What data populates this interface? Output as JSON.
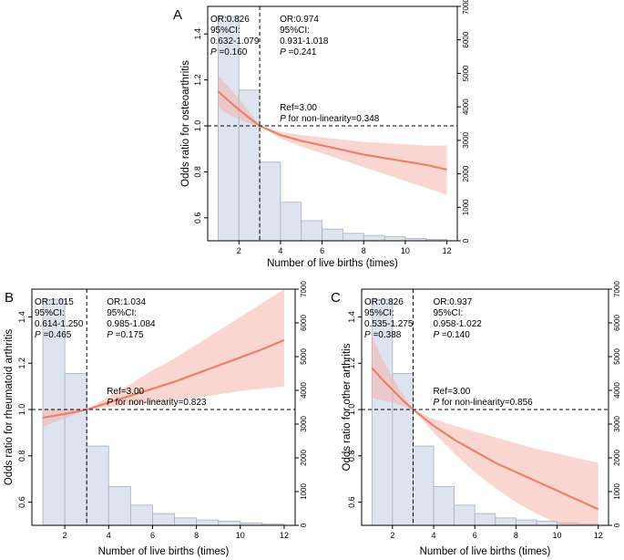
{
  "chart_data": [
    {
      "id": "A",
      "type": "line",
      "panel_label": "A",
      "title": "",
      "xlabel": "Number of live births (times)",
      "ylabel": "Odds ratio for osteoarthritis",
      "x_ticks": [
        2,
        4,
        6,
        8,
        10,
        12
      ],
      "y_ticks": [
        0.6,
        0.8,
        1.0,
        1.2,
        1.4
      ],
      "y_tick_labels": [
        "0.6",
        "0.8",
        "1.0",
        "1.2",
        "1.4"
      ],
      "y2_ticks": [
        0,
        1000,
        2000,
        3000,
        4000,
        5000,
        6000,
        7000
      ],
      "y2_tick_labels": [
        "0",
        "1000",
        "2000",
        "3000",
        "4000",
        "5000",
        "6000",
        "7000"
      ],
      "xlim": [
        0.5,
        12.5
      ],
      "ylim": [
        0.5,
        1.52
      ],
      "y2lim": [
        0,
        7000
      ],
      "reference_x": 3,
      "reference_y": 1.0,
      "histogram": {
        "bins": [
          [
            1,
            2
          ],
          [
            2,
            3
          ],
          [
            3,
            4
          ],
          [
            4,
            5
          ],
          [
            5,
            6
          ],
          [
            6,
            7
          ],
          [
            7,
            8
          ],
          [
            8,
            9
          ],
          [
            9,
            10
          ],
          [
            10,
            11
          ],
          [
            11,
            12
          ]
        ],
        "counts": [
          6700,
          4500,
          2350,
          1150,
          600,
          350,
          220,
          160,
          120,
          70,
          40
        ]
      },
      "series": [
        {
          "name": "Odds ratio",
          "x": [
            1,
            1.5,
            2,
            2.5,
            3,
            4,
            5,
            6,
            7,
            8,
            9,
            10,
            11,
            12
          ],
          "y": [
            1.15,
            1.11,
            1.07,
            1.035,
            1.0,
            0.96,
            0.935,
            0.915,
            0.895,
            0.875,
            0.86,
            0.845,
            0.83,
            0.81
          ],
          "lower": [
            1.08,
            1.05,
            1.03,
            1.01,
            1.0,
            0.945,
            0.91,
            0.88,
            0.85,
            0.82,
            0.79,
            0.76,
            0.73,
            0.7
          ],
          "upper": [
            1.22,
            1.17,
            1.12,
            1.06,
            1.0,
            0.975,
            0.96,
            0.95,
            0.94,
            0.93,
            0.925,
            0.92,
            0.915,
            0.915
          ]
        }
      ],
      "annotations": {
        "left_or": "OR:0.826",
        "left_ci_label": "95%CI:",
        "left_ci": "0.632-1.079",
        "left_p_italic": "P",
        "left_p_value": " =0.160",
        "right_or": "OR:0.974",
        "right_ci_label": "95%CI:",
        "right_ci": "0.931-1.018",
        "right_p_italic": "P",
        "right_p_value": " =0.241",
        "ref": "Ref=3.00",
        "nonlin_italic": "P",
        "nonlin_rest": " for non-linearity=0.348"
      }
    },
    {
      "id": "B",
      "type": "line",
      "panel_label": "B",
      "title": "",
      "xlabel": "Number of live births (times)",
      "ylabel": "Odds ratio for rheumatoid arthritis",
      "x_ticks": [
        2,
        4,
        6,
        8,
        10,
        12
      ],
      "y_ticks": [
        0.6,
        0.8,
        1.0,
        1.2,
        1.4
      ],
      "y_tick_labels": [
        "0.6",
        "0.8",
        "1.0",
        "1.2",
        "1.4"
      ],
      "y2_ticks": [
        0,
        1000,
        2000,
        3000,
        4000,
        5000,
        6000,
        7000
      ],
      "y2_tick_labels": [
        "0",
        "1000",
        "2000",
        "3000",
        "4000",
        "5000",
        "6000",
        "7000"
      ],
      "xlim": [
        0.5,
        12.5
      ],
      "ylim": [
        0.5,
        1.52
      ],
      "y2lim": [
        0,
        7000
      ],
      "reference_x": 3,
      "reference_y": 1.0,
      "histogram": {
        "bins": [
          [
            1,
            2
          ],
          [
            2,
            3
          ],
          [
            3,
            4
          ],
          [
            4,
            5
          ],
          [
            5,
            6
          ],
          [
            6,
            7
          ],
          [
            7,
            8
          ],
          [
            8,
            9
          ],
          [
            9,
            10
          ],
          [
            10,
            11
          ],
          [
            11,
            12
          ]
        ],
        "counts": [
          6700,
          4500,
          2350,
          1150,
          600,
          350,
          220,
          160,
          120,
          70,
          40
        ]
      },
      "series": [
        {
          "name": "Odds ratio",
          "x": [
            1,
            1.5,
            2,
            2.5,
            3,
            4,
            5,
            6,
            7,
            8,
            9,
            10,
            11,
            12
          ],
          "y": [
            0.965,
            0.973,
            0.981,
            0.99,
            1.0,
            1.03,
            1.06,
            1.09,
            1.12,
            1.155,
            1.19,
            1.225,
            1.26,
            1.3
          ],
          "lower": [
            0.925,
            0.945,
            0.96,
            0.98,
            1.0,
            1.01,
            1.02,
            1.03,
            1.04,
            1.05,
            1.065,
            1.08,
            1.09,
            1.1
          ],
          "upper": [
            1.005,
            1.0,
            1.0,
            1.0,
            1.0,
            1.055,
            1.11,
            1.17,
            1.22,
            1.28,
            1.34,
            1.4,
            1.46,
            1.52
          ]
        }
      ],
      "annotations": {
        "left_or": "OR:1.015",
        "left_ci_label": "95%CI:",
        "left_ci": "0.614-1.250",
        "left_p_italic": "P",
        "left_p_value": " =0.465",
        "right_or": "OR:1.034",
        "right_ci_label": "95%CI:",
        "right_ci": "0.985-1.084",
        "right_p_italic": "P",
        "right_p_value": " =0.175",
        "ref": "Ref=3.00",
        "nonlin_italic": "P",
        "nonlin_rest": " for non-linearity=0.823"
      }
    },
    {
      "id": "C",
      "type": "line",
      "panel_label": "C",
      "title": "",
      "xlabel": "Number of live births (times)",
      "ylabel": "Odds ratio for other arthritis",
      "x_ticks": [
        2,
        4,
        6,
        8,
        10,
        12
      ],
      "y_ticks": [
        0.6,
        0.8,
        1.0,
        1.2,
        1.4
      ],
      "y_tick_labels": [
        "0.6",
        "0.8",
        "1.0",
        "1.2",
        "1.4"
      ],
      "y2_ticks": [
        0,
        1000,
        2000,
        3000,
        4000,
        5000,
        6000,
        7000
      ],
      "y2_tick_labels": [
        "0",
        "1000",
        "2000",
        "3000",
        "4000",
        "5000",
        "6000",
        "7000"
      ],
      "xlim": [
        0.5,
        12.5
      ],
      "ylim": [
        0.5,
        1.52
      ],
      "y2lim": [
        0,
        7000
      ],
      "reference_x": 3,
      "reference_y": 1.0,
      "histogram": {
        "bins": [
          [
            1,
            2
          ],
          [
            2,
            3
          ],
          [
            3,
            4
          ],
          [
            4,
            5
          ],
          [
            5,
            6
          ],
          [
            6,
            7
          ],
          [
            7,
            8
          ],
          [
            8,
            9
          ],
          [
            9,
            10
          ],
          [
            10,
            11
          ],
          [
            11,
            12
          ]
        ],
        "counts": [
          6700,
          4500,
          2350,
          1150,
          600,
          350,
          220,
          160,
          120,
          70,
          40
        ]
      },
      "series": [
        {
          "name": "Odds ratio",
          "x": [
            1,
            1.5,
            2,
            2.5,
            3,
            4,
            5,
            6,
            7,
            8,
            9,
            10,
            11,
            12
          ],
          "y": [
            1.18,
            1.13,
            1.085,
            1.04,
            1.0,
            0.93,
            0.87,
            0.82,
            0.77,
            0.73,
            0.69,
            0.65,
            0.61,
            0.57
          ],
          "lower": [
            1.05,
            1.04,
            1.03,
            1.015,
            1.0,
            0.9,
            0.81,
            0.73,
            0.66,
            0.6,
            0.55,
            0.51,
            0.47,
            0.44
          ],
          "upper": [
            1.32,
            1.22,
            1.14,
            1.065,
            1.0,
            0.96,
            0.93,
            0.905,
            0.88,
            0.855,
            0.83,
            0.81,
            0.79,
            0.77
          ]
        }
      ],
      "annotations": {
        "left_or": "OR:0.826",
        "left_ci_label": "95%CI:",
        "left_ci": "0.535-1.275",
        "left_p_italic": "P",
        "left_p_value": " =0.388",
        "right_or": "OR:0.937",
        "right_ci_label": "95%CI:",
        "right_ci": "0.958-1.022",
        "right_p_italic": "P",
        "right_p_value": " =0.140",
        "ref": "Ref=3.00",
        "nonlin_italic": "P",
        "nonlin_rest": " for non-linearity=0.856"
      }
    }
  ],
  "colors": {
    "histogram_fill": "#dde3ef",
    "histogram_stroke": "#a7afc2",
    "line": "#e8826c",
    "ci_band": "#f6b4ab",
    "reference": "#000000"
  }
}
